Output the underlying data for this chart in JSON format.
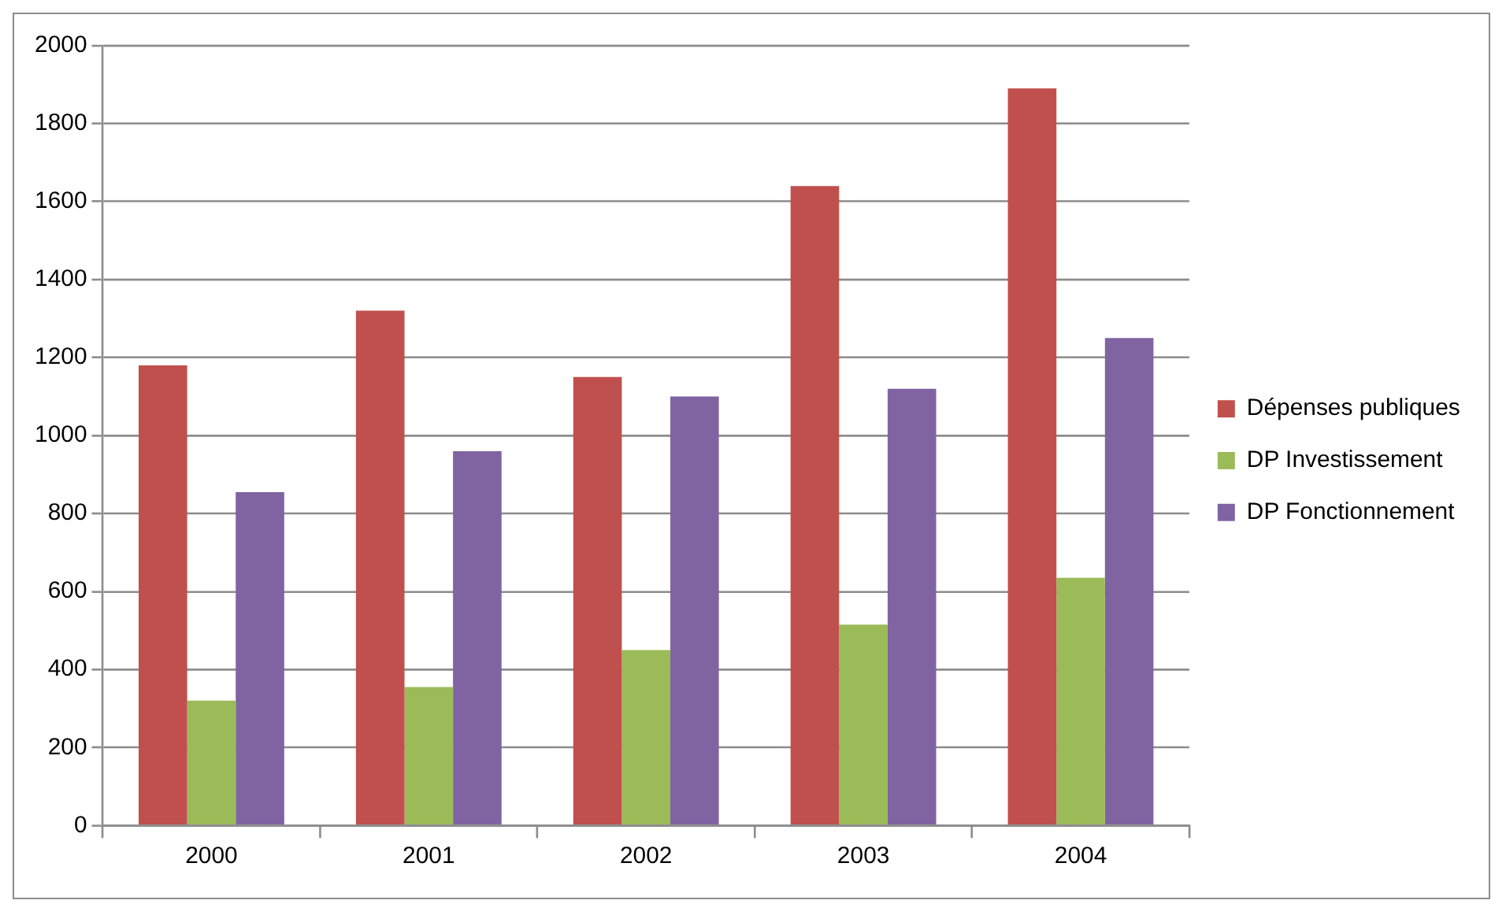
{
  "chart_data": {
    "type": "bar",
    "categories": [
      "2000",
      "2001",
      "2002",
      "2003",
      "2004"
    ],
    "series": [
      {
        "name": "Dépenses publiques",
        "color": "#c0504d",
        "values": [
          1180,
          1320,
          1150,
          1640,
          1890
        ]
      },
      {
        "name": "DP Investissement",
        "color": "#9bbb59",
        "values": [
          320,
          355,
          450,
          515,
          635
        ]
      },
      {
        "name": "DP Fonctionnement",
        "color": "#8064a2",
        "values": [
          855,
          960,
          1100,
          1120,
          1250
        ]
      }
    ],
    "ylim": [
      0,
      2000
    ],
    "yticks": [
      0,
      200,
      400,
      600,
      800,
      1000,
      1200,
      1400,
      1600,
      1800,
      2000
    ],
    "grid": "y",
    "legend": "right"
  }
}
